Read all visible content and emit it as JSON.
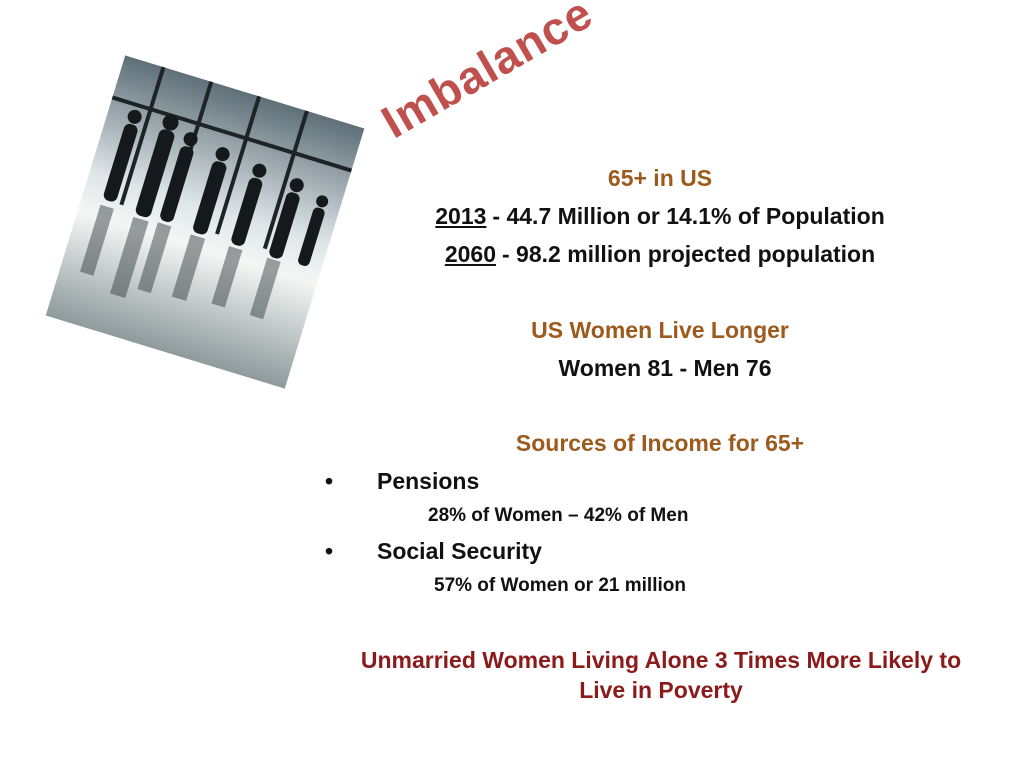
{
  "title": "Imbalance",
  "population": {
    "heading": "65+ in US",
    "lines": [
      {
        "year": "2013",
        "text": "- 44.7 Million or 14.1% of Population"
      },
      {
        "year": "2060",
        "text": "- 98.2 million projected population"
      }
    ]
  },
  "longevity": {
    "heading": "US Women Live Longer",
    "text": "Women 81 - Men 76"
  },
  "income": {
    "heading": "Sources of Income for 65+",
    "items": [
      {
        "label": "Pensions",
        "detail": "28% of Women – 42% of Men"
      },
      {
        "label": "Social Security",
        "detail": "57% of Women or 21 million"
      }
    ]
  },
  "conclusion": "Unmarried Women Living Alone 3 Times More Likely to Live in Poverty"
}
